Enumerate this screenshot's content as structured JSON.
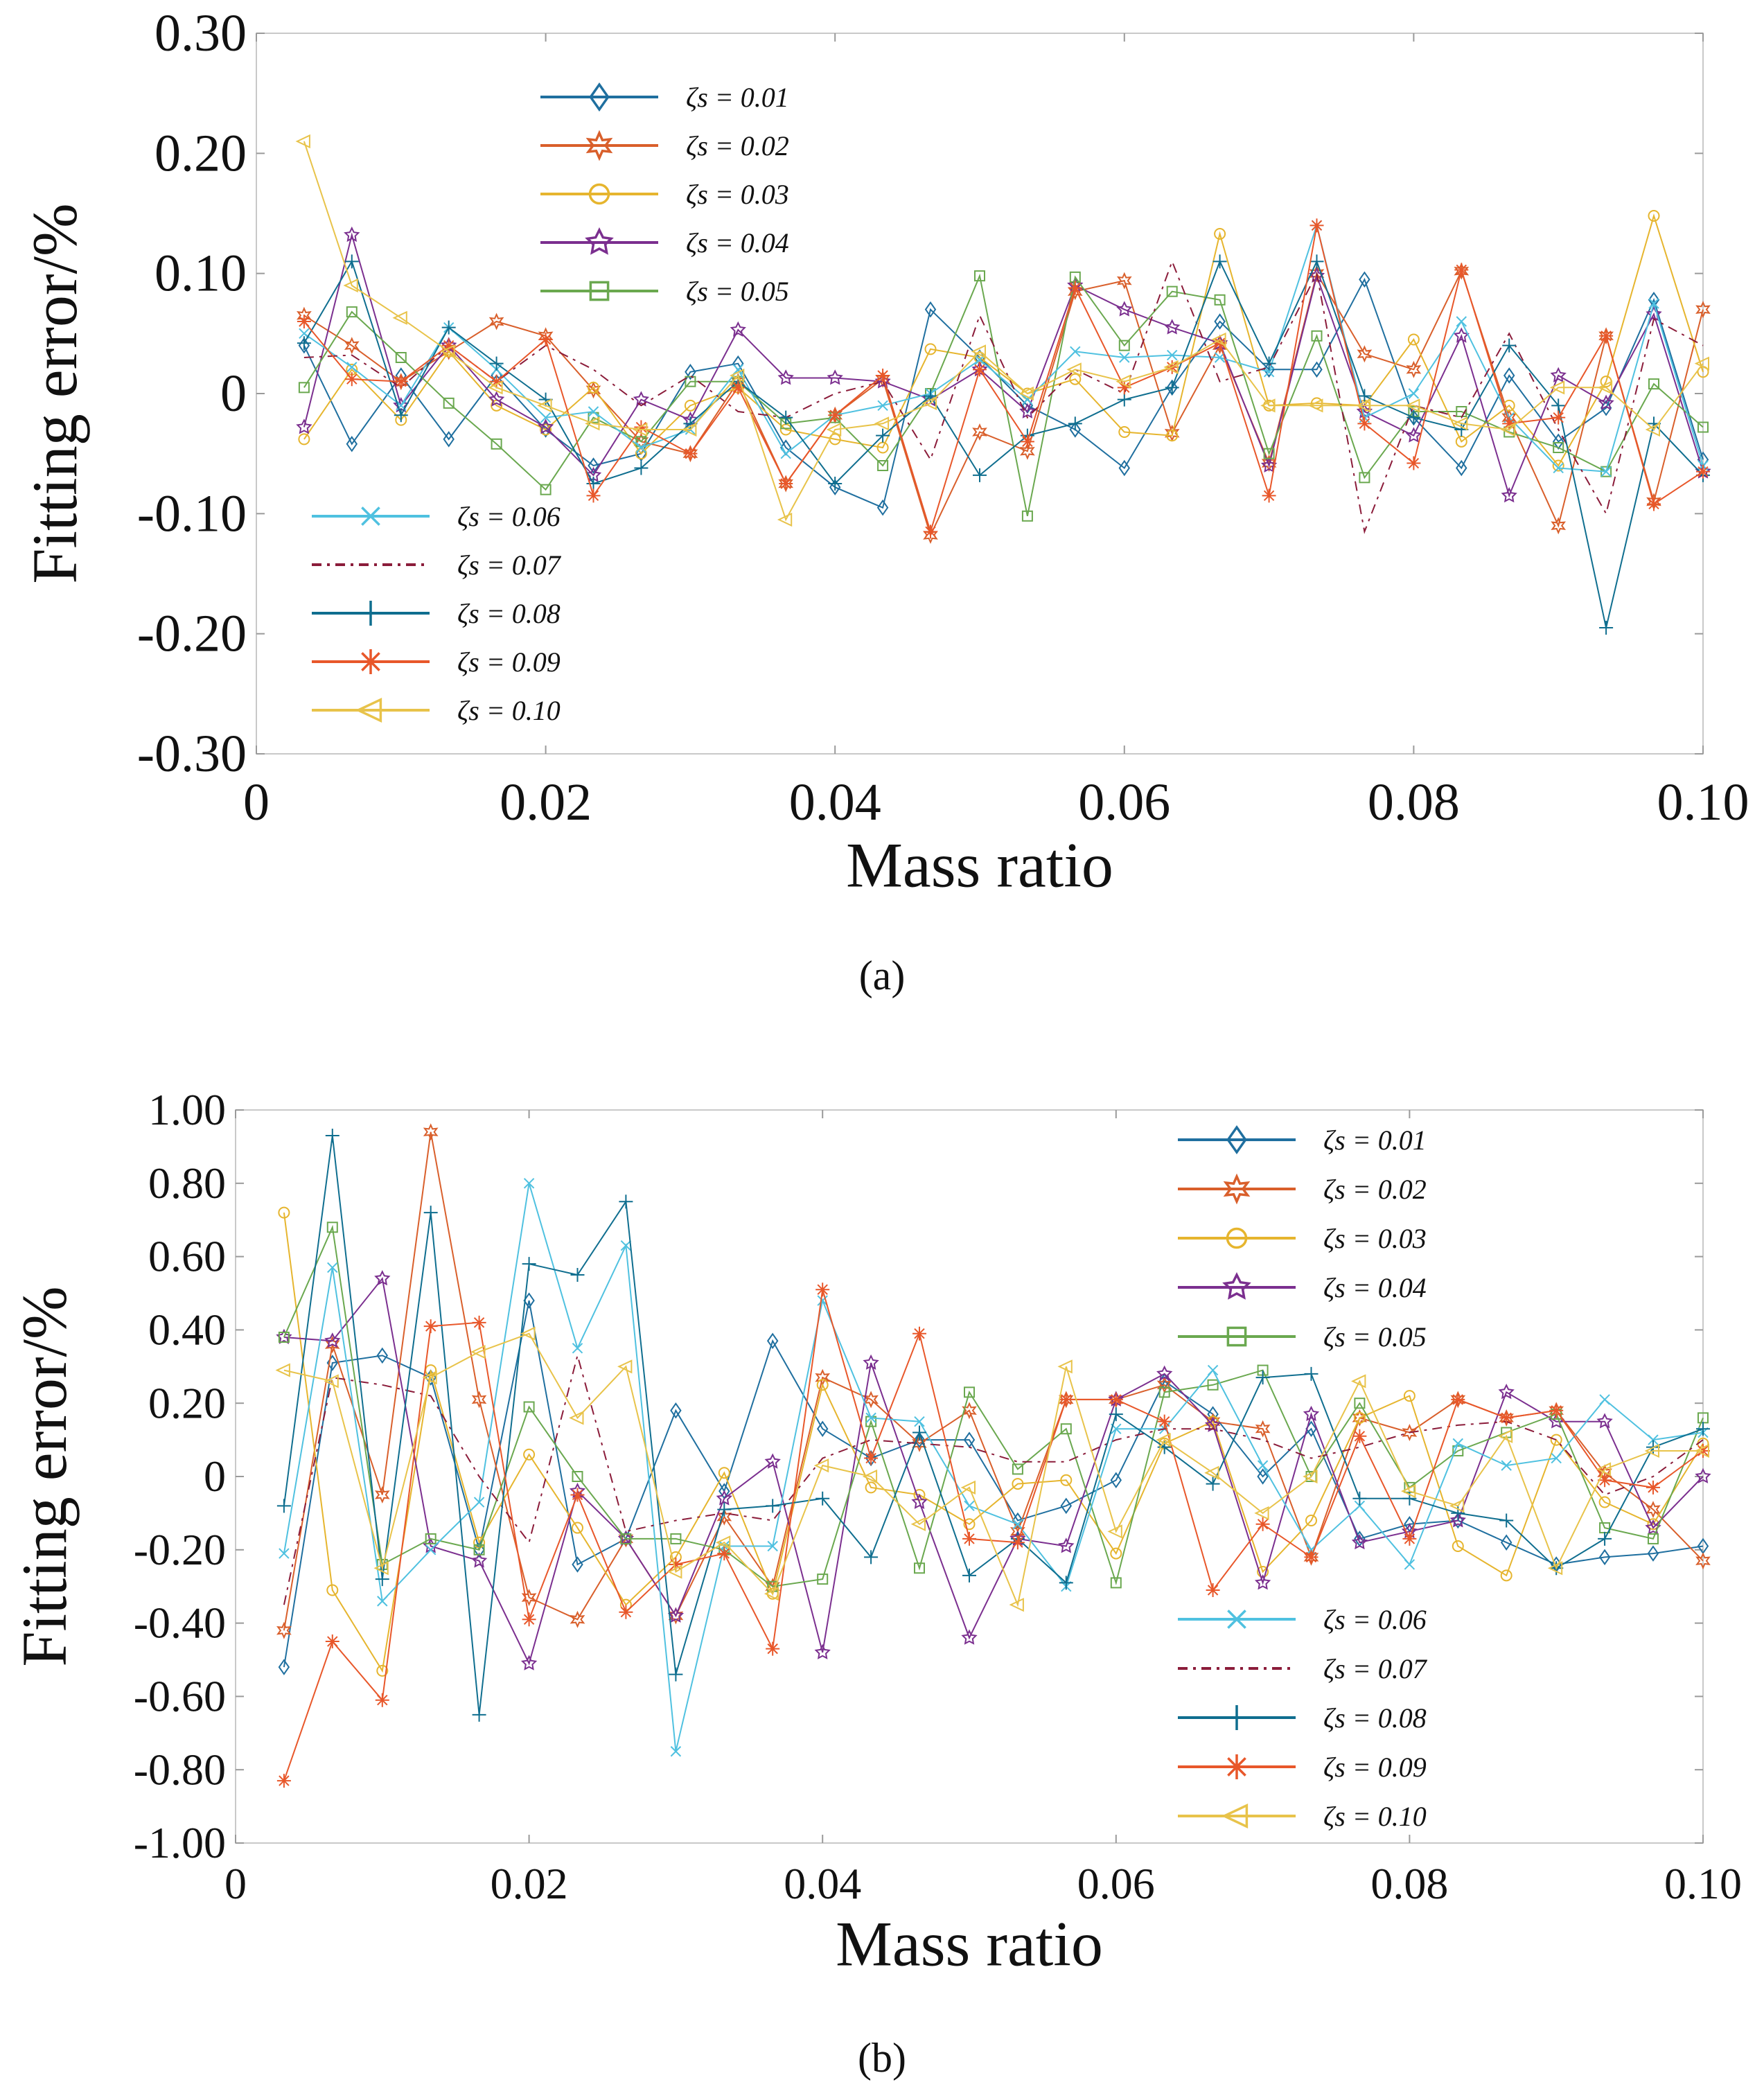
{
  "panel_labels": [
    "(a)",
    "(b)"
  ],
  "chart_data": [
    {
      "type": "line",
      "panel": "a",
      "xlabel": "Mass ratio",
      "ylabel": "Fitting error/%",
      "xlim": [
        0,
        0.1
      ],
      "ylim": [
        -0.3,
        0.3
      ],
      "xtick_labels": [
        "0",
        "0.02",
        "0.04",
        "0.06",
        "0.08",
        "0.10"
      ],
      "xtick_values": [
        0,
        0.02,
        0.04,
        0.06,
        0.08,
        0.1
      ],
      "ytick_labels": [
        "0.30",
        "0.20",
        "0.10",
        "0",
        "-0.10",
        "-0.20",
        "-0.30"
      ],
      "ytick_values": [
        0.3,
        0.2,
        0.1,
        0,
        -0.1,
        -0.2,
        -0.3
      ],
      "legend_upper": [
        "ζs = 0.01",
        "ζs = 0.02",
        "ζs = 0.03",
        "ζs = 0.04",
        "ζs = 0.05"
      ],
      "legend_lower": [
        "ζs = 0.06",
        "ζs = 0.07",
        "ζs = 0.08",
        "ζs = 0.09",
        "ζs = 0.10"
      ],
      "x": [
        0.0033,
        0.0066,
        0.01,
        0.0133,
        0.0166,
        0.02,
        0.0233,
        0.0266,
        0.03,
        0.0333,
        0.0366,
        0.04,
        0.0433,
        0.0466,
        0.05,
        0.0533,
        0.0566,
        0.06,
        0.0633,
        0.0666,
        0.07,
        0.0733,
        0.0766,
        0.08,
        0.0833,
        0.0866,
        0.09,
        0.0933,
        0.0966,
        0.1
      ],
      "series": [
        {
          "name": "ζs = 0.01",
          "color": "#1f6f9f",
          "marker": "diamond",
          "dash": "",
          "values": [
            0.04,
            -0.042,
            0.015,
            -0.038,
            0.015,
            -0.03,
            -0.06,
            -0.05,
            0.018,
            0.025,
            -0.045,
            -0.078,
            -0.095,
            0.07,
            0.03,
            -0.01,
            -0.03,
            -0.062,
            0.005,
            0.06,
            0.02,
            0.02,
            0.095,
            -0.02,
            -0.062,
            0.015,
            -0.04,
            -0.012,
            0.078,
            -0.055
          ]
        },
        {
          "name": "ζs = 0.02",
          "color": "#d95f2b",
          "marker": "hexagram",
          "dash": "",
          "values": [
            0.065,
            0.04,
            0.01,
            0.035,
            0.06,
            0.048,
            0.003,
            -0.04,
            -0.05,
            0.01,
            -0.075,
            -0.018,
            0.012,
            -0.118,
            -0.032,
            -0.048,
            0.085,
            0.094,
            -0.033,
            0.04,
            -0.058,
            0.1,
            0.033,
            0.02,
            0.102,
            -0.02,
            -0.11,
            0.048,
            -0.09,
            0.07
          ]
        },
        {
          "name": "ζs = 0.03",
          "color": "#e6b52e",
          "marker": "circle",
          "dash": "",
          "values": [
            -0.038,
            0.02,
            -0.022,
            0.035,
            -0.01,
            -0.03,
            0.005,
            -0.05,
            -0.01,
            0.005,
            -0.03,
            -0.038,
            -0.045,
            0.037,
            0.03,
            0.0,
            0.012,
            -0.032,
            -0.035,
            0.133,
            -0.01,
            -0.008,
            -0.01,
            0.045,
            -0.04,
            -0.01,
            -0.06,
            0.01,
            0.148,
            0.018
          ]
        },
        {
          "name": "ζs = 0.04",
          "color": "#7b2f8f",
          "marker": "pentagram",
          "dash": "",
          "values": [
            -0.028,
            0.132,
            -0.01,
            0.04,
            -0.005,
            -0.028,
            -0.068,
            -0.005,
            -0.022,
            0.053,
            0.013,
            0.013,
            0.01,
            -0.005,
            0.02,
            -0.015,
            0.09,
            0.07,
            0.055,
            0.042,
            -0.06,
            0.098,
            -0.015,
            -0.035,
            0.048,
            -0.085,
            0.015,
            -0.008,
            0.066,
            -0.065
          ]
        },
        {
          "name": "ζs = 0.05",
          "color": "#6aa84f",
          "marker": "square",
          "dash": "",
          "values": [
            0.005,
            0.068,
            0.03,
            -0.008,
            -0.042,
            -0.08,
            -0.02,
            -0.04,
            0.01,
            0.01,
            -0.025,
            -0.02,
            -0.06,
            0.0,
            0.098,
            -0.102,
            0.097,
            0.04,
            0.085,
            0.078,
            -0.05,
            0.048,
            -0.07,
            -0.015,
            -0.015,
            -0.032,
            -0.045,
            -0.065,
            0.008,
            -0.028
          ]
        },
        {
          "name": "ζs = 0.06",
          "color": "#4fc1e0",
          "marker": "x",
          "dash": "",
          "values": [
            0.05,
            0.022,
            -0.01,
            0.055,
            0.02,
            -0.02,
            -0.015,
            -0.045,
            -0.03,
            0.02,
            -0.05,
            -0.018,
            -0.01,
            0.0,
            0.028,
            -0.005,
            0.035,
            0.03,
            0.032,
            0.03,
            0.018,
            0.14,
            -0.02,
            0.0,
            0.06,
            -0.02,
            -0.062,
            -0.065,
            0.075,
            -0.06
          ]
        },
        {
          "name": "ζs = 0.07",
          "color": "#8b1c3a",
          "marker": "none",
          "dash": "14,8,4,8",
          "values": [
            0.03,
            0.032,
            0.005,
            0.04,
            0.01,
            0.04,
            0.02,
            -0.01,
            0.015,
            -0.015,
            -0.02,
            0.0,
            0.01,
            -0.055,
            0.065,
            -0.02,
            0.02,
            0.0,
            0.11,
            0.01,
            0.022,
            0.1,
            -0.115,
            -0.01,
            -0.02,
            0.05,
            -0.03,
            -0.1,
            0.062,
            0.04
          ]
        },
        {
          "name": "ζs = 0.08",
          "color": "#0f6e8f",
          "marker": "plus",
          "dash": "",
          "values": [
            0.042,
            0.11,
            -0.018,
            0.055,
            0.025,
            -0.005,
            -0.075,
            -0.062,
            -0.025,
            0.01,
            -0.02,
            -0.075,
            -0.035,
            -0.002,
            -0.068,
            -0.035,
            -0.025,
            -0.005,
            0.005,
            0.11,
            0.025,
            0.11,
            -0.002,
            -0.02,
            -0.03,
            0.04,
            -0.01,
            -0.195,
            -0.025,
            -0.068
          ]
        },
        {
          "name": "ζs = 0.09",
          "color": "#e8572a",
          "marker": "asterisk",
          "dash": "",
          "values": [
            0.06,
            0.012,
            0.01,
            0.04,
            0.01,
            0.045,
            -0.085,
            -0.028,
            -0.05,
            0.005,
            -0.075,
            -0.018,
            0.015,
            -0.115,
            0.02,
            -0.04,
            0.088,
            0.005,
            0.022,
            0.042,
            -0.085,
            0.14,
            -0.025,
            -0.058,
            0.103,
            -0.025,
            -0.02,
            0.048,
            -0.092,
            -0.065
          ]
        },
        {
          "name": "ζs = 0.10",
          "color": "#e8c34a",
          "marker": "triangle-left",
          "dash": "",
          "values": [
            0.21,
            0.09,
            0.063,
            0.035,
            0.005,
            -0.01,
            -0.025,
            -0.03,
            -0.03,
            0.015,
            -0.105,
            -0.03,
            -0.025,
            -0.008,
            0.035,
            0.0,
            0.02,
            0.01,
            0.022,
            0.045,
            -0.01,
            -0.01,
            -0.01,
            -0.01,
            -0.025,
            -0.03,
            0.005,
            0.005,
            -0.03,
            0.025
          ]
        }
      ]
    },
    {
      "type": "line",
      "panel": "b",
      "xlabel": "Mass ratio",
      "ylabel": "Fitting error/%",
      "xlim": [
        0,
        0.1
      ],
      "ylim": [
        -1.0,
        1.0
      ],
      "xtick_labels": [
        "0",
        "0.02",
        "0.04",
        "0.06",
        "0.08",
        "0.10"
      ],
      "xtick_values": [
        0,
        0.02,
        0.04,
        0.06,
        0.08,
        0.1
      ],
      "ytick_labels": [
        "1.00",
        "0.80",
        "0.60",
        "0.40",
        "0.20",
        "0",
        "-0.20",
        "-0.40",
        "-0.60",
        "-0.80",
        "-1.00"
      ],
      "ytick_values": [
        1.0,
        0.8,
        0.6,
        0.4,
        0.2,
        0,
        -0.2,
        -0.4,
        -0.6,
        -0.8,
        -1.0
      ],
      "legend_upper": [
        "ζs = 0.01",
        "ζs = 0.02",
        "ζs = 0.03",
        "ζs = 0.04",
        "ζs = 0.05"
      ],
      "legend_lower": [
        "ζs = 0.06",
        "ζs = 0.07",
        "ζs = 0.08",
        "ζs = 0.09",
        "ζs = 0.10"
      ],
      "x": [
        0.0033,
        0.0066,
        0.01,
        0.0133,
        0.0166,
        0.02,
        0.0233,
        0.0266,
        0.03,
        0.0333,
        0.0366,
        0.04,
        0.0433,
        0.0466,
        0.05,
        0.0533,
        0.0566,
        0.06,
        0.0633,
        0.0666,
        0.07,
        0.0733,
        0.0766,
        0.08,
        0.0833,
        0.0866,
        0.09,
        0.0933,
        0.0966,
        0.1
      ],
      "series": [
        {
          "name": "ζs = 0.01",
          "color": "#1f6f9f",
          "marker": "diamond",
          "dash": "",
          "values": [
            -0.52,
            0.31,
            0.33,
            0.27,
            -0.2,
            0.48,
            -0.24,
            -0.17,
            0.18,
            -0.04,
            0.37,
            0.13,
            0.05,
            0.1,
            0.1,
            -0.12,
            -0.08,
            -0.01,
            0.26,
            0.17,
            0.0,
            0.13,
            -0.17,
            -0.13,
            -0.12,
            -0.18,
            -0.24,
            -0.22,
            -0.21,
            -0.19
          ]
        },
        {
          "name": "ζs = 0.02",
          "color": "#d95f2b",
          "marker": "hexagram",
          "dash": "",
          "values": [
            -0.42,
            0.36,
            -0.05,
            0.94,
            0.21,
            -0.33,
            -0.39,
            -0.17,
            -0.38,
            -0.11,
            -0.3,
            0.27,
            0.21,
            0.09,
            0.18,
            -0.15,
            0.21,
            0.21,
            0.25,
            0.15,
            0.13,
            -0.22,
            0.16,
            0.12,
            0.21,
            0.16,
            0.18,
            0.01,
            -0.09,
            -0.23
          ]
        },
        {
          "name": "ζs = 0.03",
          "color": "#e6b52e",
          "marker": "circle",
          "dash": "",
          "values": [
            0.72,
            -0.31,
            -0.53,
            0.29,
            -0.18,
            0.06,
            -0.14,
            -0.35,
            -0.22,
            0.01,
            -0.32,
            0.25,
            -0.03,
            -0.05,
            -0.13,
            -0.02,
            -0.01,
            -0.21,
            0.09,
            0.15,
            -0.26,
            -0.12,
            0.16,
            0.22,
            -0.19,
            -0.27,
            0.1,
            -0.07,
            -0.13,
            0.09
          ]
        },
        {
          "name": "ζs = 0.04",
          "color": "#7b2f8f",
          "marker": "pentagram",
          "dash": "",
          "values": [
            0.38,
            0.37,
            0.54,
            -0.19,
            -0.23,
            -0.51,
            -0.04,
            -0.17,
            -0.38,
            -0.06,
            0.04,
            -0.48,
            0.31,
            -0.07,
            -0.44,
            -0.17,
            -0.19,
            0.21,
            0.28,
            0.14,
            -0.29,
            0.17,
            -0.18,
            -0.15,
            -0.12,
            0.23,
            0.15,
            0.15,
            -0.14,
            0.0
          ]
        },
        {
          "name": "ζs = 0.05",
          "color": "#6aa84f",
          "marker": "square",
          "dash": "",
          "values": [
            0.38,
            0.68,
            -0.24,
            -0.17,
            -0.2,
            0.19,
            0.0,
            -0.17,
            -0.17,
            -0.2,
            -0.3,
            -0.28,
            0.15,
            -0.25,
            0.23,
            0.02,
            0.13,
            -0.29,
            0.23,
            0.25,
            0.29,
            0.0,
            0.2,
            -0.03,
            0.07,
            0.12,
            0.17,
            -0.14,
            -0.17,
            0.16
          ]
        },
        {
          "name": "ζs = 0.06",
          "color": "#4fc1e0",
          "marker": "x",
          "dash": "",
          "values": [
            -0.21,
            0.57,
            -0.34,
            -0.2,
            -0.07,
            0.8,
            0.35,
            0.63,
            -0.75,
            -0.19,
            -0.19,
            0.48,
            0.16,
            0.15,
            -0.08,
            -0.13,
            -0.3,
            0.13,
            0.13,
            0.29,
            0.03,
            -0.2,
            -0.08,
            -0.24,
            0.09,
            0.03,
            0.05,
            0.21,
            0.1,
            0.12
          ]
        },
        {
          "name": "ζs = 0.07",
          "color": "#8b1c3a",
          "marker": "none",
          "dash": "14,8,4,8",
          "values": [
            -0.35,
            0.27,
            0.25,
            0.22,
            0.0,
            -0.18,
            0.33,
            -0.15,
            -0.12,
            -0.1,
            -0.12,
            0.05,
            0.1,
            0.09,
            0.08,
            0.04,
            0.04,
            0.1,
            0.13,
            0.13,
            0.1,
            0.05,
            0.08,
            0.12,
            0.14,
            0.15,
            0.1,
            -0.05,
            0.0,
            0.1
          ]
        },
        {
          "name": "ζs = 0.08",
          "color": "#0f6e8f",
          "marker": "plus",
          "dash": "",
          "values": [
            -0.08,
            0.93,
            -0.28,
            0.72,
            -0.65,
            0.58,
            0.55,
            0.75,
            -0.54,
            -0.09,
            -0.08,
            -0.06,
            -0.22,
            0.12,
            -0.27,
            -0.17,
            -0.29,
            0.17,
            0.08,
            -0.02,
            0.27,
            0.28,
            -0.06,
            -0.06,
            -0.1,
            -0.12,
            -0.25,
            -0.17,
            0.08,
            0.13
          ]
        },
        {
          "name": "ζs = 0.09",
          "color": "#e8572a",
          "marker": "asterisk",
          "dash": "",
          "values": [
            -0.83,
            -0.45,
            -0.61,
            0.41,
            0.42,
            -0.39,
            -0.05,
            -0.37,
            -0.24,
            -0.21,
            -0.47,
            0.51,
            0.05,
            0.39,
            -0.17,
            -0.18,
            0.21,
            0.21,
            0.15,
            -0.31,
            -0.13,
            -0.22,
            0.11,
            -0.17,
            0.21,
            0.16,
            0.18,
            -0.01,
            -0.03,
            0.07
          ]
        },
        {
          "name": "ζs = 0.10",
          "color": "#e8c34a",
          "marker": "triangle-left",
          "dash": "",
          "values": [
            0.29,
            0.26,
            -0.25,
            0.27,
            0.34,
            0.39,
            0.16,
            0.3,
            -0.26,
            -0.18,
            -0.32,
            0.03,
            0.0,
            -0.13,
            -0.03,
            -0.35,
            0.3,
            -0.15,
            0.1,
            0.01,
            -0.1,
            0.0,
            0.26,
            -0.04,
            -0.08,
            0.11,
            -0.25,
            0.02,
            0.07,
            0.07
          ]
        }
      ]
    }
  ]
}
